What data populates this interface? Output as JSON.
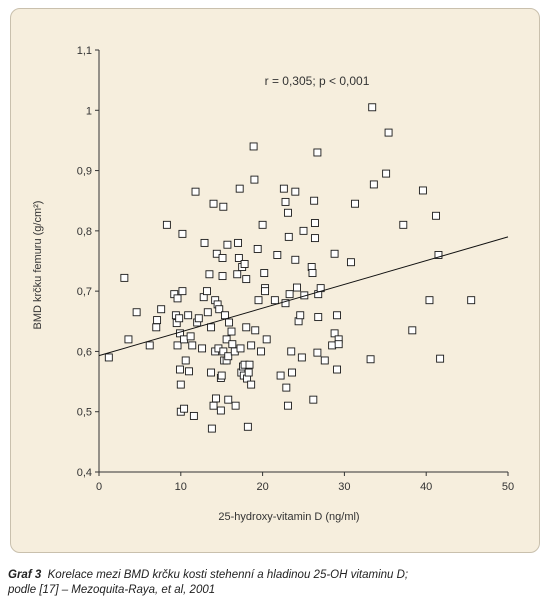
{
  "colors": {
    "panel_bg": "#f6eedd",
    "axis": "#333333",
    "marker_stroke": "#1a1a1a",
    "marker_fill": "#ffffff",
    "text": "#333333"
  },
  "caption": {
    "label": "Graf 3",
    "line1": "Korelace mezi BMD krčku kosti stehenní a hladinou 25-OH vitaminu D;",
    "line2": "podle [17] – Mezoquita-Raya, et al, 2001"
  },
  "chart_data": {
    "type": "scatter",
    "title": "",
    "annotation": "r = 0,305; p < 0,001",
    "xlabel": "25-hydroxy-vitamin D (ng/ml)",
    "ylabel": "BMD krčku femuru (g/cm²)",
    "xlim": [
      0,
      50
    ],
    "ylim": [
      0.4,
      1.1
    ],
    "x_ticks": [
      0,
      10,
      20,
      30,
      40,
      50
    ],
    "x_tick_labels": [
      "0",
      "10",
      "20",
      "30",
      "40",
      "50"
    ],
    "y_ticks": [
      0.4,
      0.5,
      0.6,
      0.7,
      0.8,
      0.9,
      1.0,
      1.1
    ],
    "y_tick_labels": [
      "0,4",
      "0,5",
      "0,6",
      "0,7",
      "0,8",
      "0,9",
      "1",
      "1,1"
    ],
    "grid": false,
    "marker": "open-square",
    "trendline": {
      "x": [
        0,
        50
      ],
      "y": [
        0.593,
        0.79
      ]
    },
    "points": [
      [
        1.2,
        0.59
      ],
      [
        3.1,
        0.722
      ],
      [
        3.6,
        0.62
      ],
      [
        4.6,
        0.665
      ],
      [
        6.2,
        0.61
      ],
      [
        7.0,
        0.64
      ],
      [
        7.1,
        0.652
      ],
      [
        7.6,
        0.67
      ],
      [
        8.3,
        0.81
      ],
      [
        9.2,
        0.695
      ],
      [
        9.4,
        0.66
      ],
      [
        9.5,
        0.647
      ],
      [
        9.6,
        0.61
      ],
      [
        9.6,
        0.688
      ],
      [
        9.8,
        0.655
      ],
      [
        9.9,
        0.63
      ],
      [
        9.9,
        0.57
      ],
      [
        10.0,
        0.545
      ],
      [
        10.0,
        0.5
      ],
      [
        10.2,
        0.795
      ],
      [
        10.2,
        0.7
      ],
      [
        10.4,
        0.62
      ],
      [
        10.4,
        0.505
      ],
      [
        10.6,
        0.585
      ],
      [
        10.9,
        0.66
      ],
      [
        11.0,
        0.567
      ],
      [
        11.2,
        0.625
      ],
      [
        11.4,
        0.61
      ],
      [
        11.6,
        0.493
      ],
      [
        11.8,
        0.865
      ],
      [
        12.0,
        0.648
      ],
      [
        12.2,
        0.655
      ],
      [
        12.6,
        0.605
      ],
      [
        12.8,
        0.69
      ],
      [
        12.9,
        0.78
      ],
      [
        13.2,
        0.7
      ],
      [
        13.3,
        0.665
      ],
      [
        13.5,
        0.728
      ],
      [
        13.7,
        0.64
      ],
      [
        13.7,
        0.565
      ],
      [
        13.8,
        0.472
      ],
      [
        14.0,
        0.51
      ],
      [
        14.0,
        0.845
      ],
      [
        14.2,
        0.685
      ],
      [
        14.2,
        0.6
      ],
      [
        14.3,
        0.522
      ],
      [
        14.4,
        0.762
      ],
      [
        14.5,
        0.678
      ],
      [
        14.6,
        0.605
      ],
      [
        14.7,
        0.67
      ],
      [
        14.9,
        0.556
      ],
      [
        14.9,
        0.502
      ],
      [
        15.0,
        0.56
      ],
      [
        15.1,
        0.755
      ],
      [
        15.1,
        0.725
      ],
      [
        15.2,
        0.84
      ],
      [
        15.2,
        0.6
      ],
      [
        15.3,
        0.585
      ],
      [
        15.4,
        0.66
      ],
      [
        15.6,
        0.62
      ],
      [
        15.6,
        0.585
      ],
      [
        15.7,
        0.777
      ],
      [
        15.8,
        0.52
      ],
      [
        15.8,
        0.592
      ],
      [
        15.9,
        0.648
      ],
      [
        16.2,
        0.633
      ],
      [
        16.3,
        0.612
      ],
      [
        16.6,
        0.6
      ],
      [
        16.7,
        0.51
      ],
      [
        16.9,
        0.728
      ],
      [
        17.0,
        0.78
      ],
      [
        17.1,
        0.755
      ],
      [
        17.2,
        0.87
      ],
      [
        17.3,
        0.605
      ],
      [
        17.4,
        0.565
      ],
      [
        17.5,
        0.74
      ],
      [
        17.6,
        0.575
      ],
      [
        17.7,
        0.56
      ],
      [
        17.8,
        0.578
      ],
      [
        17.8,
        0.745
      ],
      [
        18.0,
        0.64
      ],
      [
        18.0,
        0.72
      ],
      [
        18.1,
        0.555
      ],
      [
        18.2,
        0.475
      ],
      [
        18.3,
        0.565
      ],
      [
        18.4,
        0.578
      ],
      [
        18.6,
        0.61
      ],
      [
        18.6,
        0.545
      ],
      [
        18.9,
        0.94
      ],
      [
        19.0,
        0.885
      ],
      [
        19.1,
        0.635
      ],
      [
        19.4,
        0.77
      ],
      [
        19.5,
        0.685
      ],
      [
        19.8,
        0.6
      ],
      [
        20.0,
        0.81
      ],
      [
        20.2,
        0.73
      ],
      [
        20.3,
        0.705
      ],
      [
        20.5,
        0.62
      ],
      [
        20.3,
        0.7
      ],
      [
        21.5,
        0.685
      ],
      [
        21.8,
        0.76
      ],
      [
        22.2,
        0.56
      ],
      [
        22.6,
        0.87
      ],
      [
        22.8,
        0.848
      ],
      [
        22.8,
        0.68
      ],
      [
        22.9,
        0.54
      ],
      [
        23.1,
        0.51
      ],
      [
        23.1,
        0.83
      ],
      [
        23.2,
        0.79
      ],
      [
        23.3,
        0.695
      ],
      [
        23.5,
        0.6
      ],
      [
        23.6,
        0.565
      ],
      [
        24.0,
        0.865
      ],
      [
        24.0,
        0.752
      ],
      [
        24.2,
        0.706
      ],
      [
        24.4,
        0.65
      ],
      [
        24.6,
        0.66
      ],
      [
        24.8,
        0.59
      ],
      [
        25.0,
        0.8
      ],
      [
        25.1,
        0.693
      ],
      [
        26.0,
        0.74
      ],
      [
        26.1,
        0.73
      ],
      [
        26.2,
        0.52
      ],
      [
        26.3,
        0.85
      ],
      [
        26.4,
        0.813
      ],
      [
        26.4,
        0.788
      ],
      [
        26.7,
        0.93
      ],
      [
        26.7,
        0.598
      ],
      [
        26.8,
        0.695
      ],
      [
        26.8,
        0.657
      ],
      [
        27.1,
        0.705
      ],
      [
        27.6,
        0.585
      ],
      [
        28.5,
        0.61
      ],
      [
        28.8,
        0.762
      ],
      [
        28.8,
        0.63
      ],
      [
        29.1,
        0.66
      ],
      [
        29.1,
        0.57
      ],
      [
        29.3,
        0.62
      ],
      [
        29.3,
        0.612
      ],
      [
        30.8,
        0.748
      ],
      [
        31.3,
        0.845
      ],
      [
        33.2,
        0.587
      ],
      [
        33.4,
        1.005
      ],
      [
        33.6,
        0.877
      ],
      [
        35.1,
        0.895
      ],
      [
        35.4,
        0.963
      ],
      [
        37.2,
        0.81
      ],
      [
        38.3,
        0.635
      ],
      [
        39.6,
        0.867
      ],
      [
        40.4,
        0.685
      ],
      [
        41.2,
        0.825
      ],
      [
        41.5,
        0.76
      ],
      [
        41.7,
        0.588
      ],
      [
        45.5,
        0.685
      ]
    ]
  }
}
